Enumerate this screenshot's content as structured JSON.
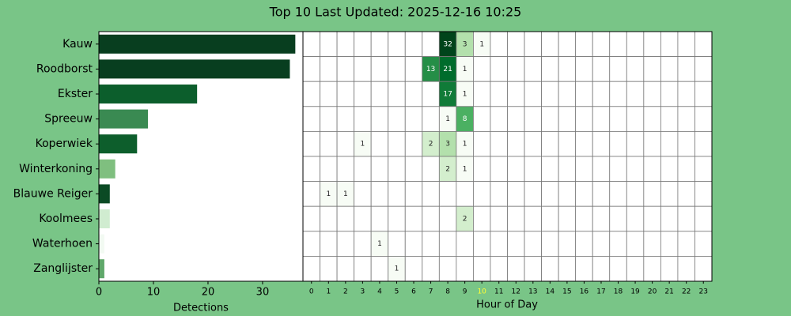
{
  "chart_data": [
    {
      "type": "barh",
      "title": "Top 10 Last Updated: 2025-12-16 10:25",
      "xlabel": "Detections",
      "categories": [
        "Kauw",
        "Roodborst",
        "Ekster",
        "Spreeuw",
        "Koperwiek",
        "Winterkoning",
        "Blauwe Reiger",
        "Koolmees",
        "Waterhoen",
        "Zanglijster"
      ],
      "values": [
        36,
        35,
        18,
        9,
        7,
        3,
        2,
        2,
        1,
        1
      ],
      "colors": [
        "#083e1f",
        "#083e1f",
        "#0c5e2c",
        "#3a8a52",
        "#0d5e2c",
        "#7fbf7f",
        "#0b4a24",
        "#d0ecd0",
        "#f2faf2",
        "#5fa86a"
      ],
      "xlim": [
        0,
        37.4
      ],
      "xticks": [
        0,
        10,
        20,
        30
      ]
    },
    {
      "type": "heatmap",
      "xlabel": "Hour of Day",
      "x": [
        0,
        1,
        2,
        3,
        4,
        5,
        6,
        7,
        8,
        9,
        10,
        11,
        12,
        13,
        14,
        15,
        16,
        17,
        18,
        19,
        20,
        21,
        22,
        23
      ],
      "x_highlight": 10,
      "x_highlight_color": "#ffff33",
      "color_scale": "log",
      "values": [
        [
          null,
          null,
          null,
          null,
          null,
          null,
          null,
          null,
          32,
          3,
          1,
          null,
          null,
          null,
          null,
          null,
          null,
          null,
          null,
          null,
          null,
          null,
          null,
          null
        ],
        [
          null,
          null,
          null,
          null,
          null,
          null,
          null,
          13,
          21,
          1,
          null,
          null,
          null,
          null,
          null,
          null,
          null,
          null,
          null,
          null,
          null,
          null,
          null,
          null
        ],
        [
          null,
          null,
          null,
          null,
          null,
          null,
          null,
          null,
          17,
          1,
          null,
          null,
          null,
          null,
          null,
          null,
          null,
          null,
          null,
          null,
          null,
          null,
          null,
          null
        ],
        [
          null,
          null,
          null,
          null,
          null,
          null,
          null,
          null,
          1,
          8,
          null,
          null,
          null,
          null,
          null,
          null,
          null,
          null,
          null,
          null,
          null,
          null,
          null,
          null
        ],
        [
          null,
          null,
          null,
          1,
          null,
          null,
          null,
          2,
          3,
          1,
          null,
          null,
          null,
          null,
          null,
          null,
          null,
          null,
          null,
          null,
          null,
          null,
          null,
          null
        ],
        [
          null,
          null,
          null,
          null,
          null,
          null,
          null,
          null,
          2,
          1,
          null,
          null,
          null,
          null,
          null,
          null,
          null,
          null,
          null,
          null,
          null,
          null,
          null,
          null
        ],
        [
          null,
          1,
          1,
          null,
          null,
          null,
          null,
          null,
          null,
          null,
          null,
          null,
          null,
          null,
          null,
          null,
          null,
          null,
          null,
          null,
          null,
          null,
          null,
          null
        ],
        [
          null,
          null,
          null,
          null,
          null,
          null,
          null,
          null,
          null,
          2,
          null,
          null,
          null,
          null,
          null,
          null,
          null,
          null,
          null,
          null,
          null,
          null,
          null,
          null
        ],
        [
          null,
          null,
          null,
          null,
          1,
          null,
          null,
          null,
          null,
          null,
          null,
          null,
          null,
          null,
          null,
          null,
          null,
          null,
          null,
          null,
          null,
          null,
          null,
          null
        ],
        [
          null,
          null,
          null,
          null,
          null,
          1,
          null,
          null,
          null,
          null,
          null,
          null,
          null,
          null,
          null,
          null,
          null,
          null,
          null,
          null,
          null,
          null,
          null,
          null
        ]
      ]
    }
  ]
}
